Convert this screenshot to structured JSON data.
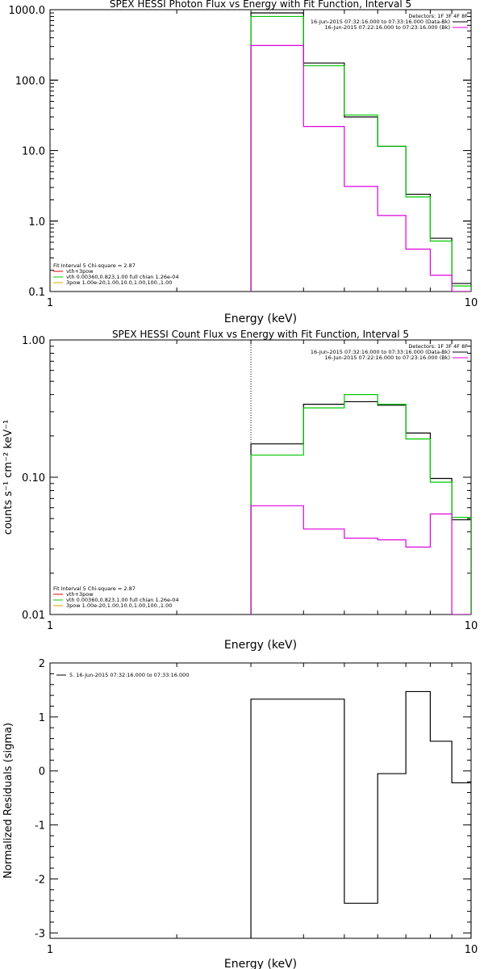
{
  "chart_data": [
    {
      "type": "line",
      "step": true,
      "title": "SPEX HESSI Photon Flux vs Energy with Fit Function, Interval 5",
      "xlabel": "Energy (keV)",
      "ylabel": "",
      "xscale": "log",
      "yscale": "log",
      "xlim": [
        1,
        10
      ],
      "ylim": [
        0.1,
        1000
      ],
      "xticks": [
        {
          "v": 1,
          "label": "1"
        },
        {
          "v": 10,
          "label": "10"
        }
      ],
      "yticks": [
        {
          "v": 0.1,
          "label": "0.1"
        },
        {
          "v": 1,
          "label": "1.0"
        },
        {
          "v": 10,
          "label": "10.0"
        },
        {
          "v": 100,
          "label": "100.0"
        },
        {
          "v": 1000,
          "label": "1000.0"
        }
      ],
      "bin_edges": [
        3,
        4,
        5,
        6,
        7,
        8,
        9,
        10
      ],
      "vline": {
        "x": 3,
        "color": "#00c800",
        "style": "dotted"
      },
      "series": [
        {
          "color": "#000000",
          "values": [
            900,
            175,
            30,
            11.5,
            2.4,
            0.57,
            0.13
          ]
        },
        {
          "color": "#00c800",
          "values": [
            800,
            160,
            32,
            11.5,
            2.2,
            0.52,
            0.12
          ]
        },
        {
          "color": "#e000e0",
          "values": [
            310,
            22,
            3.1,
            1.2,
            0.4,
            0.17,
            0.1
          ]
        }
      ],
      "legend_right": {
        "placement": "top-right",
        "header": "Detectors: 1F 3F 4F 8F",
        "items": [
          {
            "label": "16-Jun-2015 07:32:16.000 to 07:33:16.000 (Data-Bk)",
            "color": "#000000"
          },
          {
            "label": "16-Jun-2015 07:22:16.000 to 07:23:16.000 (Bk)",
            "color": "#e000e0"
          }
        ]
      },
      "legend_left": {
        "placement": "bottom-left",
        "header": "Fit Interval 5   Chi-square = 2.87",
        "items": [
          {
            "label": "vth+3pow",
            "color": "#e00000"
          },
          {
            "label": "vth 0.00360,0.823,1.00   full chian 1.26e-04",
            "color": "#00c800"
          },
          {
            "label": "3pow 1.00e-20,1.00,10.0,1.00,100.,1.00",
            "color": "#d8a800"
          }
        ]
      }
    },
    {
      "type": "line",
      "step": true,
      "title": "SPEX HESSI Count Flux vs Energy with Fit Function, Interval 5",
      "xlabel": "Energy (keV)",
      "ylabel": "counts s⁻¹ cm⁻² keV⁻¹",
      "xscale": "log",
      "yscale": "log",
      "xlim": [
        1,
        10
      ],
      "ylim": [
        0.01,
        1
      ],
      "xticks": [
        {
          "v": 1,
          "label": "1"
        },
        {
          "v": 10,
          "label": "10"
        }
      ],
      "yticks": [
        {
          "v": 0.01,
          "label": "0.01"
        },
        {
          "v": 0.1,
          "label": "0.10"
        },
        {
          "v": 1,
          "label": "1.00"
        }
      ],
      "bin_edges": [
        3,
        4,
        5,
        6,
        7,
        8,
        9,
        10
      ],
      "vline": {
        "x": 3,
        "color": "#000000",
        "style": "dotted"
      },
      "series": [
        {
          "color": "#000000",
          "values": [
            0.175,
            0.34,
            0.355,
            0.335,
            0.21,
            0.098,
            0.049
          ]
        },
        {
          "color": "#00c800",
          "values": [
            0.145,
            0.32,
            0.4,
            0.34,
            0.19,
            0.092,
            0.051
          ]
        },
        {
          "color": "#e000e0",
          "values": [
            0.062,
            0.042,
            0.036,
            0.035,
            0.031,
            0.054,
            0.01
          ]
        }
      ],
      "legend_right": {
        "placement": "top-right",
        "header": "Detectors: 1F 3F 4F 8F",
        "items": [
          {
            "label": "16-Jun-2015 07:32:16.000 to 07:33:16.000 (Data-Bk)",
            "color": "#000000"
          },
          {
            "label": "16-Jun-2015 07:22:16.000 to 07:23:16.000 (Bk)",
            "color": "#e000e0"
          }
        ]
      },
      "legend_left": {
        "placement": "bottom-left",
        "header": "Fit Interval 5   Chi-square = 2.87",
        "items": [
          {
            "label": "vth+3pow",
            "color": "#e00000"
          },
          {
            "label": "vth 0.00360,0.823,1.00   full chian 1.26e-04",
            "color": "#00c800"
          },
          {
            "label": "3pow 1.00e-20,1.00,10.0,1.00,100.,1.00",
            "color": "#d8a800"
          }
        ]
      }
    },
    {
      "type": "line",
      "step": true,
      "title": "",
      "xlabel": "Energy (keV)",
      "ylabel": "Normalized Residuals (sigma)",
      "xscale": "log",
      "yscale": "linear",
      "xlim": [
        1,
        10
      ],
      "ylim": [
        -3.1,
        2
      ],
      "xticks": [
        {
          "v": 1,
          "label": "1"
        },
        {
          "v": 10,
          "label": "10"
        }
      ],
      "yticks": [
        {
          "v": -3,
          "label": "-3"
        },
        {
          "v": -2,
          "label": "-2"
        },
        {
          "v": -1,
          "label": "-1"
        },
        {
          "v": 0,
          "label": "0"
        },
        {
          "v": 1,
          "label": "1"
        },
        {
          "v": 2,
          "label": "2"
        }
      ],
      "bin_edges": [
        3,
        4,
        5,
        6,
        7,
        8,
        9,
        10
      ],
      "series": [
        {
          "color": "#000000",
          "values": [
            1.33,
            1.33,
            -2.45,
            -0.05,
            1.47,
            0.55,
            -0.22
          ]
        }
      ],
      "legend_left": {
        "placement": "top-left",
        "header": "",
        "items": [
          {
            "label": "5. 16-Jun-2015 07:32:16.000 to 07:33:16.000",
            "color": "#000000"
          }
        ]
      }
    }
  ]
}
